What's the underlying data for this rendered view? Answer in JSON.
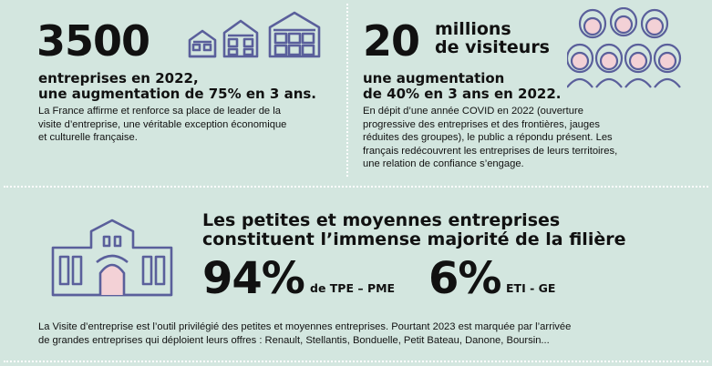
{
  "colors": {
    "background": "#d3e6df",
    "icon_stroke": "#5a5f9b",
    "accent_pink": "#f3d1d6",
    "separator": "#ffffff"
  },
  "block1": {
    "number": "3500",
    "subtitle_line1": "entreprises en 2022,",
    "subtitle_line2": "une augmentation de 75% en 3 ans.",
    "body_lines": [
      "La France affirme et renforce sa place de leader de la",
      "visite d’entreprise, une véritable exception économique",
      "et culturelle française."
    ],
    "icon": "houses-icon"
  },
  "block2": {
    "number": "20",
    "number_suffix_line1": "millions",
    "number_suffix_line2": "de visiteurs",
    "subtitle_line1": "une augmentation",
    "subtitle_line2": "de 40% en 3 ans en 2022.",
    "body_lines": [
      "En dépit d’une année COVID en 2022 (ouverture",
      "progressive des entreprises et des frontières, jauges",
      "réduites des groupes), le public a répondu présent. Les",
      "français redécouvrent les entreprises de leurs territoires,",
      "une relation de confiance s’engage."
    ],
    "icon": "crowd-icon"
  },
  "block3": {
    "title_line1": "Les petites et moyennes entreprises",
    "title_line2": "constituent l’immense majorité de la filière",
    "stat1_value": "94%",
    "stat1_label": "de TPE – PME",
    "stat2_value": "6%",
    "stat2_label": "ETI - GE",
    "icon": "building-icon"
  },
  "footer": {
    "line1": "La Visite d’entreprise est l’outil privilégié des petites et moyennes entreprises. Pourtant 2023 est marquée par l’arrivée",
    "line2": "de grandes entreprises qui déploient leurs offres : Renault, Stellantis, Bonduelle, Petit Bateau, Danone, Boursin..."
  }
}
